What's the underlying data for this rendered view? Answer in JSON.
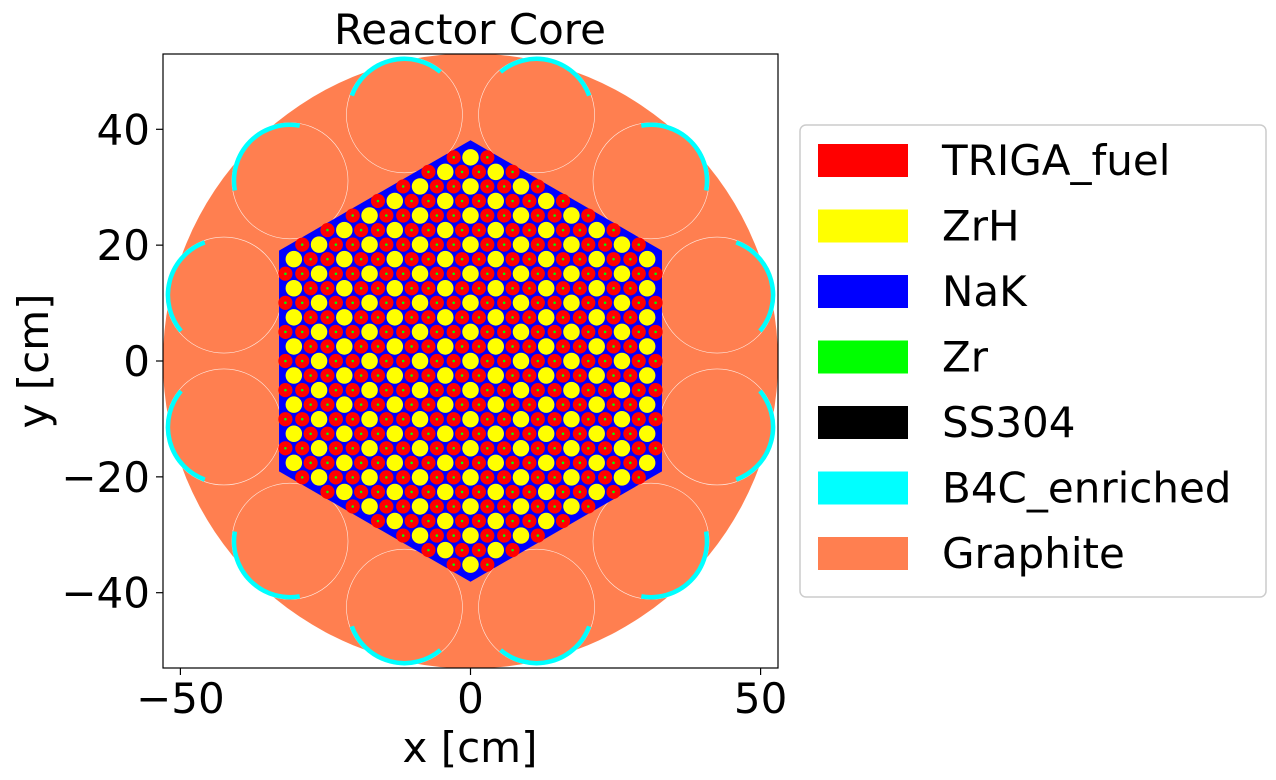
{
  "title": "Reactor Core",
  "x_axis": {
    "label": "x [cm]",
    "range": [
      -53,
      53
    ],
    "ticks": [
      {
        "value": -50,
        "label": "−50"
      },
      {
        "value": 0,
        "label": "0"
      },
      {
        "value": 50,
        "label": "50"
      }
    ]
  },
  "y_axis": {
    "label": "y [cm]",
    "range": [
      -53,
      53
    ],
    "ticks": [
      {
        "value": 40,
        "label": "40"
      },
      {
        "value": 20,
        "label": "20"
      },
      {
        "value": 0,
        "label": "0"
      },
      {
        "value": -20,
        "label": "−20"
      },
      {
        "value": -40,
        "label": "−40"
      }
    ]
  },
  "legend": {
    "placement": "outside-right",
    "items": [
      {
        "label": "TRIGA_fuel",
        "color": "#ff0000"
      },
      {
        "label": "ZrH",
        "color": "#ffff00"
      },
      {
        "label": "NaK",
        "color": "#0000ff"
      },
      {
        "label": "Zr",
        "color": "#00ff00"
      },
      {
        "label": "SS304",
        "color": "#000000"
      },
      {
        "label": "B4C_enriched",
        "color": "#00ffff"
      },
      {
        "label": "Graphite",
        "color": "#ff7f50"
      }
    ]
  },
  "geometry": {
    "reflector_radius_cm": 53,
    "core_hexagon_flat_half_width_cm": 33,
    "pin_pitch_cm": 2.9,
    "control_drum_center_radius_cm": 44,
    "control_drum_count": 12,
    "control_drum_radius_cm": 10,
    "colors": {
      "graphite": "#ff7f50",
      "fuel": "#ff0000",
      "moderator": "#ffff00",
      "coolant": "#0000ff",
      "clad": "#00ff00",
      "absorber": "#00ffff"
    }
  }
}
